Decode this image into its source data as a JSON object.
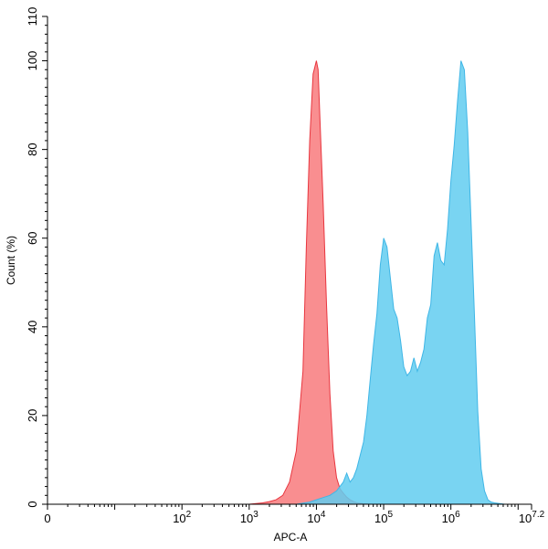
{
  "chart_data": {
    "type": "area",
    "xlabel": "APC-A",
    "ylabel": "Count (%)",
    "x_scale": "log",
    "xlim": [
      1,
      15848931.9
    ],
    "ylim": [
      0,
      110
    ],
    "grid": false,
    "x_ticks": [
      {
        "value": 1,
        "base": "0",
        "exp": ""
      },
      {
        "value": 100,
        "base": "10",
        "exp": "2"
      },
      {
        "value": 1000,
        "base": "10",
        "exp": "3"
      },
      {
        "value": 10000,
        "base": "10",
        "exp": "4"
      },
      {
        "value": 100000,
        "base": "10",
        "exp": "5"
      },
      {
        "value": 1000000,
        "base": "10",
        "exp": "6"
      },
      {
        "value": 15848931.9,
        "base": "10",
        "exp": "7.2"
      }
    ],
    "y_ticks": [
      0,
      20,
      40,
      60,
      80,
      100,
      110
    ],
    "series": [
      {
        "fill": "#f87a7d",
        "stroke": "#e8363f",
        "x": [
          100,
          1000,
          1585,
          1995,
          2512,
          3162,
          3981,
          5012,
          6310,
          7079,
          7943,
          8913,
          10000,
          10593,
          11220,
          12589,
          14125,
          15849,
          17783,
          19953,
          22387,
          25119,
          28184,
          31623,
          35481,
          39811,
          50119,
          63096,
          100000
        ],
        "y": [
          0,
          0,
          0.3,
          0.6,
          1,
          2,
          5,
          12,
          30,
          58,
          82,
          97,
          100,
          98,
          88,
          68,
          45,
          25,
          12,
          6,
          3.5,
          2.5,
          1.6,
          1,
          0.6,
          0.3,
          0.1,
          0,
          0
        ]
      },
      {
        "fill": "#62ccf0",
        "stroke": "#3fb6e6",
        "x": [
          100,
          5012,
          7943,
          10000,
          12589,
          15849,
          19953,
          25119,
          28184,
          31623,
          35481,
          39811,
          44668,
          50119,
          56234,
          63096,
          70795,
          79433,
          89125,
          100000,
          112202,
          125893,
          141254,
          158489,
          177828,
          199526,
          223872,
          251189,
          281838,
          316228,
          354813,
          398107,
          446684,
          501187,
          562341,
          630957,
          707946,
          794328,
          891251,
          1000000,
          1122018,
          1258925,
          1412538,
          1584893,
          1778279,
          1995262,
          2238721,
          2511886,
          2818383,
          3162278,
          3548134,
          3981072,
          4466836,
          5011872,
          6309573,
          15848932
        ],
        "y": [
          0,
          0,
          0.5,
          1,
          1.5,
          2,
          3,
          5,
          7,
          5,
          6,
          8,
          11,
          14,
          20,
          28,
          36,
          43,
          54,
          60,
          58,
          51,
          44,
          42,
          37,
          31,
          29,
          30,
          33,
          30,
          32,
          35,
          42,
          45,
          56,
          59,
          55,
          54,
          62,
          73,
          81,
          91,
          100,
          98,
          84,
          64,
          43,
          21,
          8,
          3,
          1,
          0.5,
          0.3,
          0.2,
          0,
          0
        ]
      }
    ]
  }
}
